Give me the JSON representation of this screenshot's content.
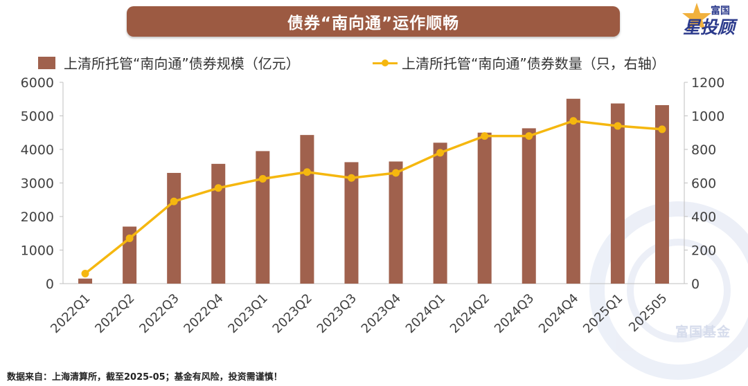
{
  "title": "债券“南向通”运作顺畅",
  "brand": {
    "top": "富国",
    "main": "星投顾"
  },
  "watermark": "富国基金",
  "footer": "数据来自：上海清算所，截至2025-05；基金有风险，投资需谨慎！",
  "colors": {
    "bar": "#a0614d",
    "line": "#f5b70f",
    "title_bg": "#9c5a42",
    "brand": "#2b3a8c"
  },
  "chart_data": {
    "type": "bar+line",
    "categories": [
      "2022Q1",
      "2022Q2",
      "2022Q3",
      "2022Q4",
      "2023Q1",
      "2023Q2",
      "2023Q3",
      "2023Q4",
      "2024Q1",
      "2024Q2",
      "2024Q3",
      "2024Q4",
      "2025Q1",
      "202505"
    ],
    "series": [
      {
        "name": "上清所托管“南向通”债券规模（亿元）",
        "type": "bar",
        "axis": "left",
        "values": [
          150,
          1700,
          3300,
          3570,
          3950,
          4430,
          3620,
          3640,
          4200,
          4500,
          4630,
          5510,
          5370,
          5320
        ]
      },
      {
        "name": "上清所托管“南向通”债券数量（只，右轴）",
        "type": "line",
        "axis": "right",
        "values": [
          60,
          270,
          490,
          570,
          625,
          665,
          630,
          660,
          780,
          880,
          880,
          970,
          940,
          920
        ]
      }
    ],
    "y_left": {
      "min": 0,
      "max": 6000,
      "ticks": [
        "0",
        "1000",
        "2000",
        "3000",
        "4000",
        "5000",
        "6000"
      ]
    },
    "y_right": {
      "min": 0,
      "max": 1200,
      "ticks": [
        "0",
        "200",
        "400",
        "600",
        "800",
        "1000",
        "1200"
      ]
    },
    "grid": false,
    "legend": "top"
  }
}
